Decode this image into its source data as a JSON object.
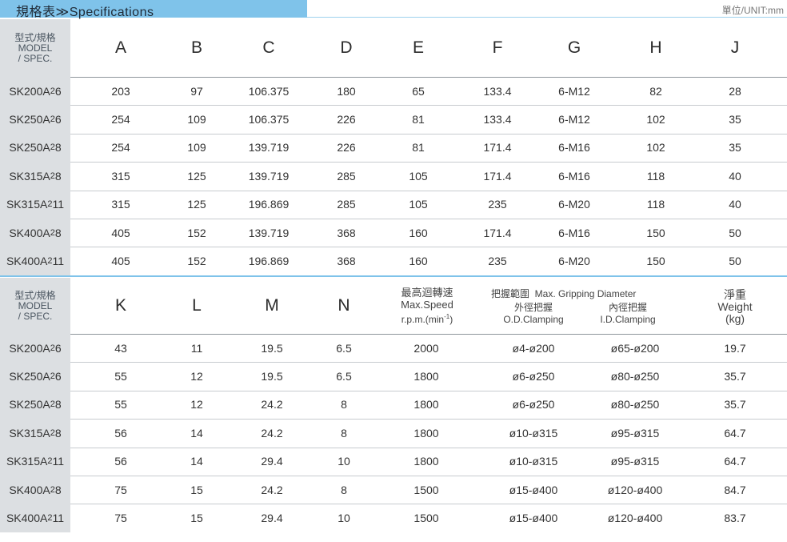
{
  "header": {
    "title": "規格表≫Specifications",
    "unit": "單位/UNIT:mm"
  },
  "spec_header_lines": [
    "型式/規格",
    "MODEL",
    "/ SPEC."
  ],
  "table1": {
    "columns": [
      "A",
      "B",
      "C",
      "D",
      "E",
      "F",
      "G",
      "H",
      "J"
    ],
    "rows": [
      {
        "model": "SK200A",
        "sub": "2",
        "suf": "6",
        "cells": [
          "203",
          "97",
          "106.375",
          "180",
          "65",
          "133.4",
          "6-M12",
          "82",
          "28"
        ]
      },
      {
        "model": "SK250A",
        "sub": "2",
        "suf": "6",
        "cells": [
          "254",
          "109",
          "106.375",
          "226",
          "81",
          "133.4",
          "6-M12",
          "102",
          "35"
        ]
      },
      {
        "model": "SK250A",
        "sub": "2",
        "suf": "8",
        "cells": [
          "254",
          "109",
          "139.719",
          "226",
          "81",
          "171.4",
          "6-M16",
          "102",
          "35"
        ]
      },
      {
        "model": "SK315A",
        "sub": "2",
        "suf": "8",
        "cells": [
          "315",
          "125",
          "139.719",
          "285",
          "105",
          "171.4",
          "6-M16",
          "118",
          "40"
        ]
      },
      {
        "model": "SK315A",
        "sub": "2",
        "suf": "11",
        "cells": [
          "315",
          "125",
          "196.869",
          "285",
          "105",
          "235",
          "6-M20",
          "118",
          "40"
        ]
      },
      {
        "model": "SK400A",
        "sub": "2",
        "suf": "8",
        "cells": [
          "405",
          "152",
          "139.719",
          "368",
          "160",
          "171.4",
          "6-M16",
          "150",
          "50"
        ]
      },
      {
        "model": "SK400A",
        "sub": "2",
        "suf": "11",
        "cells": [
          "405",
          "152",
          "196.869",
          "368",
          "160",
          "235",
          "6-M20",
          "150",
          "50"
        ]
      }
    ]
  },
  "table2": {
    "columns": [
      "K",
      "L",
      "M",
      "N"
    ],
    "speed_header": [
      "最高迴轉速",
      "Max.Speed",
      "r.p.m.(min",
      "-1",
      ")"
    ],
    "grip_header": "把握範圍  Max. Gripping Diameter",
    "od_header": [
      "外徑把握",
      "O.D.Clamping"
    ],
    "id_header": [
      "內徑把握",
      "I.D.Clamping"
    ],
    "weight_header": [
      "淨重",
      "Weight",
      "(kg)"
    ],
    "rows": [
      {
        "model": "SK200A",
        "sub": "2",
        "suf": "6",
        "cells": [
          "43",
          "11",
          "19.5",
          "6.5",
          "2000",
          "ø4-ø200",
          "ø65-ø200",
          "19.7"
        ]
      },
      {
        "model": "SK250A",
        "sub": "2",
        "suf": "6",
        "cells": [
          "55",
          "12",
          "19.5",
          "6.5",
          "1800",
          "ø6-ø250",
          "ø80-ø250",
          "35.7"
        ]
      },
      {
        "model": "SK250A",
        "sub": "2",
        "suf": "8",
        "cells": [
          "55",
          "12",
          "24.2",
          "8",
          "1800",
          "ø6-ø250",
          "ø80-ø250",
          "35.7"
        ]
      },
      {
        "model": "SK315A",
        "sub": "2",
        "suf": "8",
        "cells": [
          "56",
          "14",
          "24.2",
          "8",
          "1800",
          "ø10-ø315",
          "ø95-ø315",
          "64.7"
        ]
      },
      {
        "model": "SK315A",
        "sub": "2",
        "suf": "11",
        "cells": [
          "56",
          "14",
          "29.4",
          "10",
          "1800",
          "ø10-ø315",
          "ø95-ø315",
          "64.7"
        ]
      },
      {
        "model": "SK400A",
        "sub": "2",
        "suf": "8",
        "cells": [
          "75",
          "15",
          "24.2",
          "8",
          "1500",
          "ø15-ø400",
          "ø120-ø400",
          "84.7"
        ]
      },
      {
        "model": "SK400A",
        "sub": "2",
        "suf": "11",
        "cells": [
          "75",
          "15",
          "29.4",
          "10",
          "1500",
          "ø15-ø400",
          "ø120-ø400",
          "83.7"
        ]
      }
    ]
  }
}
